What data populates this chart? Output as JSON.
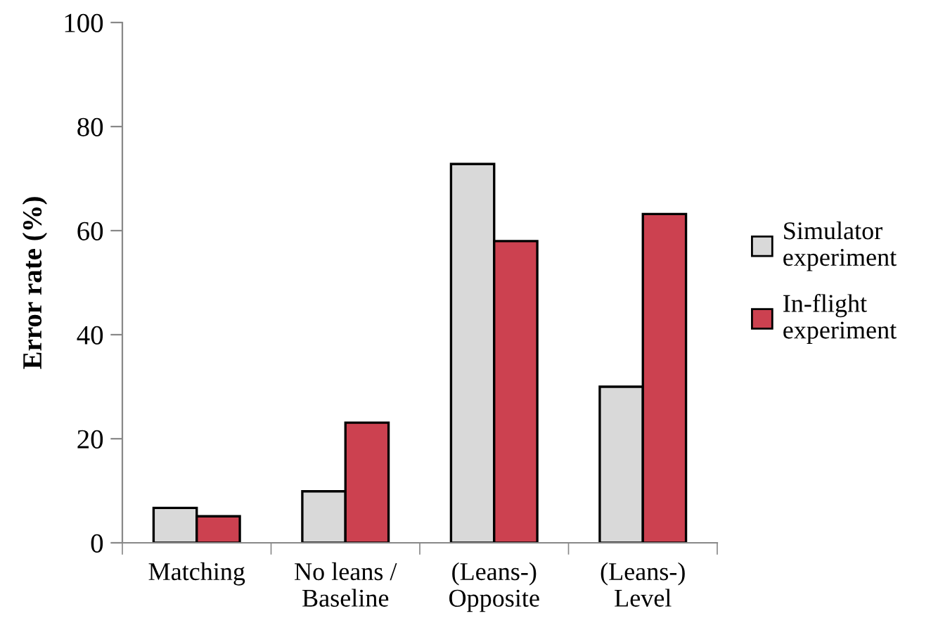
{
  "chart_data": {
    "type": "bar",
    "ylabel": "Error rate (%)",
    "categories": [
      "Matching",
      "No leans /\nBaseline",
      "(Leans-)\nOpposite",
      "(Leans-)\nLevel"
    ],
    "series": [
      {
        "name": "Simulator\nexperiment",
        "color": "#d9d9d9",
        "values": [
          6.7,
          9.9,
          72.8,
          30.0
        ]
      },
      {
        "name": "In-flight\nexperiment",
        "color": "#cc4150",
        "values": [
          5.1,
          23.1,
          58.0,
          63.2
        ]
      }
    ],
    "ylim": [
      0,
      100
    ],
    "yticks": [
      0,
      20,
      40,
      60,
      80,
      100
    ],
    "grid": false,
    "legend": "right"
  }
}
